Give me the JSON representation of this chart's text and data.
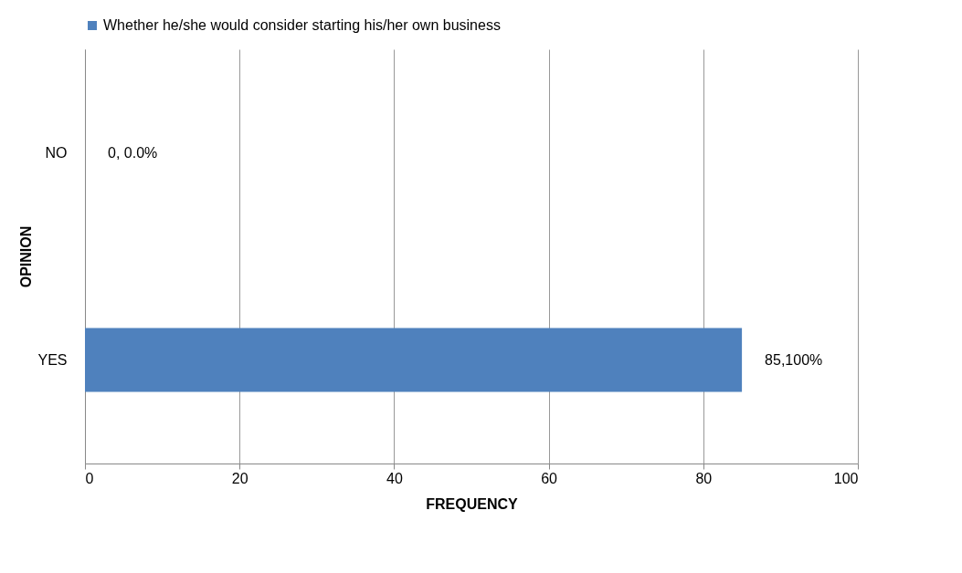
{
  "chart_data": {
    "type": "bar",
    "orientation": "horizontal",
    "categories": [
      "NO",
      "YES"
    ],
    "series": [
      {
        "name": "Whether he/she would consider starting his/her own business",
        "color": "#4f81bd",
        "values": [
          0,
          85
        ]
      }
    ],
    "value_labels": [
      "0, 0.0%",
      "85,100%"
    ],
    "xlabel": "FREQUENCY",
    "ylabel": "OPINION",
    "xlim": [
      0,
      100
    ],
    "xticks": [
      0,
      20,
      40,
      60,
      80,
      100
    ],
    "grid": "x",
    "legend": "top"
  }
}
